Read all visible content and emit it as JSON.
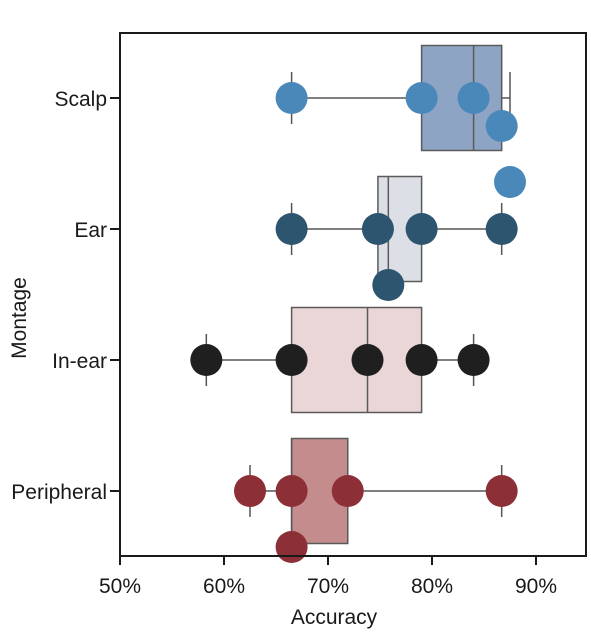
{
  "chart_data": {
    "type": "box-swarm",
    "xlabel": "Accuracy",
    "ylabel": "Montage",
    "xlim": [
      50,
      95
    ],
    "xticks": [
      50,
      60,
      70,
      80,
      90
    ],
    "xtick_labels": [
      "50%",
      "60%",
      "70%",
      "80%",
      "90%"
    ],
    "orientation": "horizontal",
    "grid": false,
    "categories": [
      {
        "name": "Scalp",
        "box_color": "#8ea4c4",
        "point_color": "#4a88ba",
        "whisker": [
          66.5,
          87.5
        ],
        "q1": 79,
        "median": 84,
        "q3": 86.7,
        "points": [
          66.5,
          79,
          84,
          86.7,
          87.5
        ]
      },
      {
        "name": "Ear",
        "box_color": "#dcdfe5",
        "point_color": "#2e5570",
        "whisker": [
          66.5,
          86.7
        ],
        "q1": 74.8,
        "median": 75.8,
        "q3": 79,
        "points": [
          66.5,
          74.8,
          75.8,
          79,
          86.7
        ]
      },
      {
        "name": "In-ear",
        "box_color": "#ead6d6",
        "point_color": "#1f1f1f",
        "whisker": [
          58.3,
          84
        ],
        "q1": 66.5,
        "median": 73.8,
        "q3": 79,
        "points": [
          58.3,
          66.5,
          73.8,
          79,
          84
        ]
      },
      {
        "name": "Peripheral",
        "box_color": "#c48c8c",
        "point_color": "#8c2f36",
        "whisker": [
          62.5,
          86.7
        ],
        "q1": 66.5,
        "median": 66.5,
        "q3": 71.9,
        "points": [
          62.5,
          66.5,
          66.5,
          71.9,
          86.7
        ]
      }
    ]
  }
}
